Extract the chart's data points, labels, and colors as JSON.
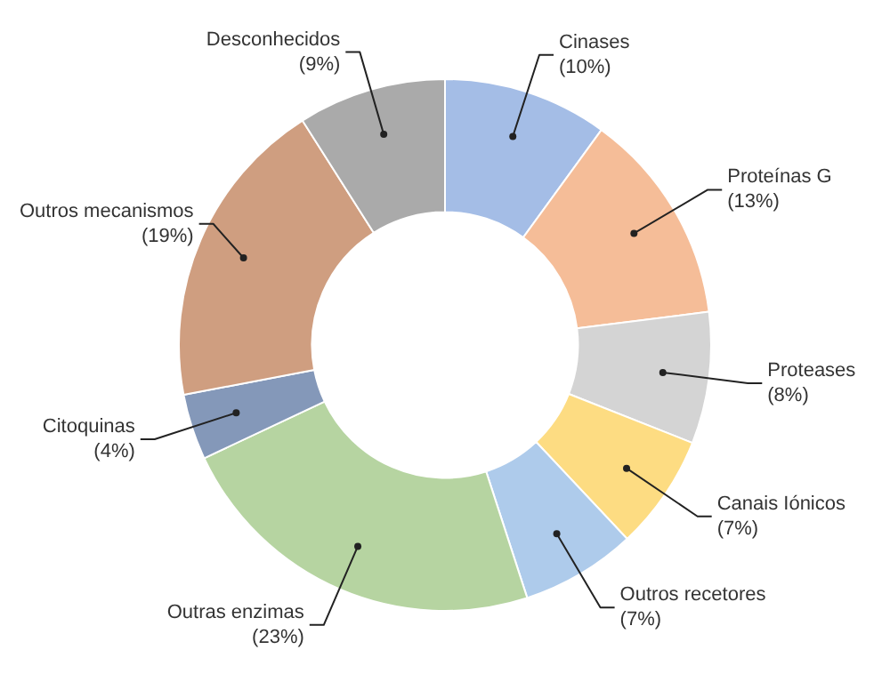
{
  "chart_data": {
    "type": "donut",
    "categories": [
      "Cinases",
      "Proteínas G",
      "Proteases",
      "Canais Iónicos",
      "Outros recetores",
      "Outras enzimas",
      "Citoquinas",
      "Outros mecanismos",
      "Desconhecidos"
    ],
    "values": [
      10,
      13,
      8,
      7,
      7,
      23,
      4,
      19,
      9
    ],
    "value_labels": [
      "(10%)",
      "(13%)",
      "(8%)",
      "(7%)",
      "(7%)",
      "(23%)",
      "(4%)",
      "(19%)",
      "(9%)"
    ],
    "colors": [
      "#a4bde6",
      "#f5bd98",
      "#d4d4d4",
      "#fddc82",
      "#aecbeb",
      "#b6d4a1",
      "#8498b9",
      "#cf9e80",
      "#aaaaaa"
    ],
    "legend": false
  }
}
